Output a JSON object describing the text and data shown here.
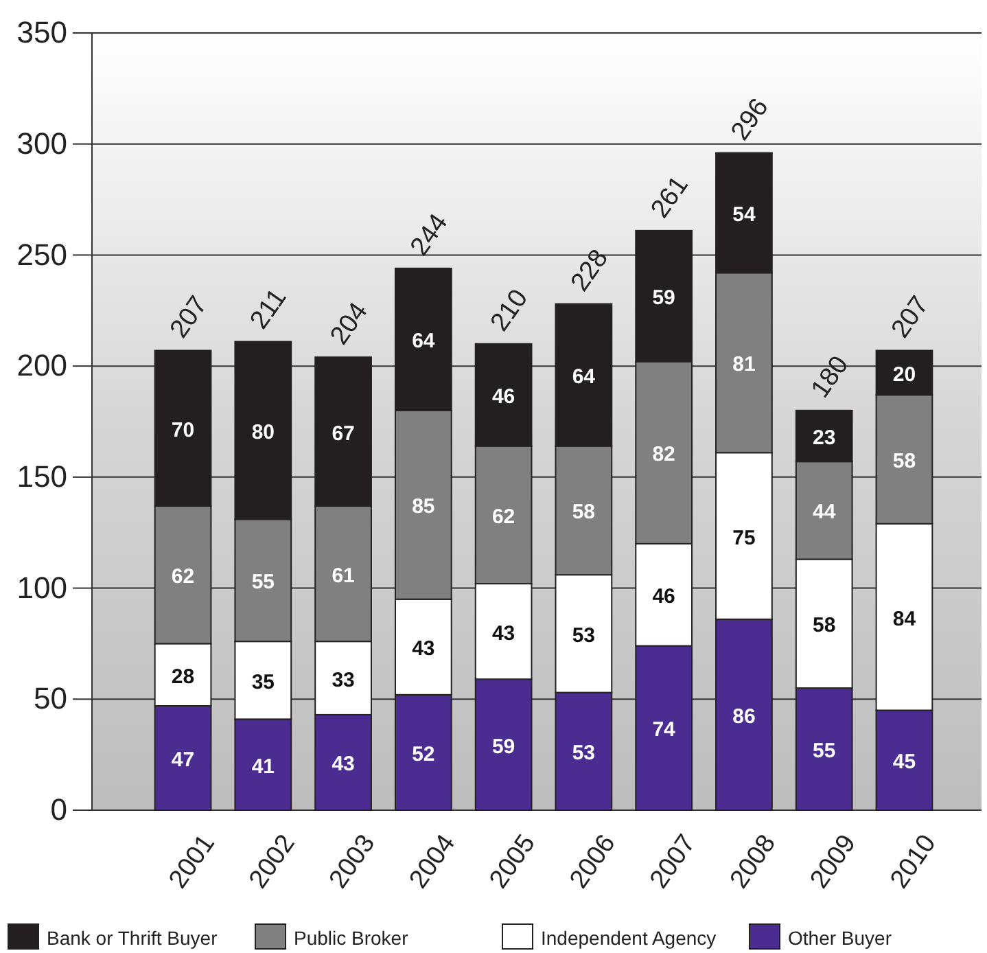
{
  "chart_data": {
    "type": "bar",
    "stacked": true,
    "categories": [
      "2001",
      "2002",
      "2003",
      "2004",
      "2005",
      "2006",
      "2007",
      "2008",
      "2009",
      "2010"
    ],
    "series": [
      {
        "name": "Other Buyer",
        "color": "#4b2c91",
        "values": [
          47,
          41,
          43,
          52,
          59,
          53,
          74,
          86,
          55,
          45
        ]
      },
      {
        "name": "Independent Agency",
        "color": "#ffffff",
        "values": [
          28,
          35,
          33,
          43,
          43,
          53,
          46,
          75,
          58,
          84
        ]
      },
      {
        "name": "Public Broker",
        "color": "#808080",
        "values": [
          62,
          55,
          61,
          85,
          62,
          58,
          82,
          81,
          44,
          58
        ]
      },
      {
        "name": "Bank or Thrift Buyer",
        "color": "#231f20",
        "values": [
          70,
          80,
          67,
          64,
          46,
          64,
          59,
          54,
          23,
          20
        ]
      }
    ],
    "ylim": [
      0,
      350
    ],
    "yticks": [
      0,
      50,
      100,
      150,
      200,
      250,
      300,
      350
    ],
    "grid": "y",
    "data_labels": true,
    "totals": [
      "207",
      "211",
      "204",
      "244",
      "210",
      "228",
      "261",
      "296",
      "180",
      "207"
    ],
    "legend": "bottom"
  }
}
